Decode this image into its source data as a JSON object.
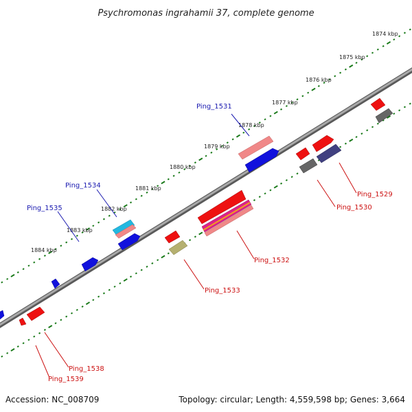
{
  "title": "Psychromonas ingrahamii 37, complete genome",
  "footer": {
    "accession": "Accession: NC_008709",
    "summary": "Topology: circular; Length: 4,559,598 bp; Genes: 3,664"
  },
  "ticks": [
    "1874 kbp",
    "1875 kbp",
    "1876 kbp",
    "1877 kbp",
    "1878 kbp",
    "1879 kbp",
    "1880 kbp",
    "1881 kbp",
    "1882 kbp",
    "1883 kbp",
    "1884 kbp"
  ],
  "labels": [
    {
      "text": "Ping_1531",
      "strand": "forward"
    },
    {
      "text": "Ping_1534",
      "strand": "forward"
    },
    {
      "text": "Ping_1535",
      "strand": "forward"
    },
    {
      "text": "Ping_1529",
      "strand": "reverse"
    },
    {
      "text": "Ping_1530",
      "strand": "reverse"
    },
    {
      "text": "Ping_1532",
      "strand": "reverse"
    },
    {
      "text": "Ping_1533",
      "strand": "reverse"
    },
    {
      "text": "Ping_1538",
      "strand": "reverse"
    },
    {
      "text": "Ping_1539",
      "strand": "reverse"
    }
  ],
  "colors": {
    "forward_label": "#1a1ab0",
    "reverse_label": "#cc1111",
    "backbone": "#808080",
    "dots": "#1a7a1a",
    "cds_red": "#ee1111",
    "cds_blue": "#1111dd",
    "cds_gray": "#666666",
    "cds_slate": "#404080",
    "cds_olive": "#b5b070",
    "cds_pink": "#f08888",
    "cds_cyan": "#22b8e0",
    "cds_magenta": "#dd2288",
    "cds_orange": "#f0a020"
  }
}
